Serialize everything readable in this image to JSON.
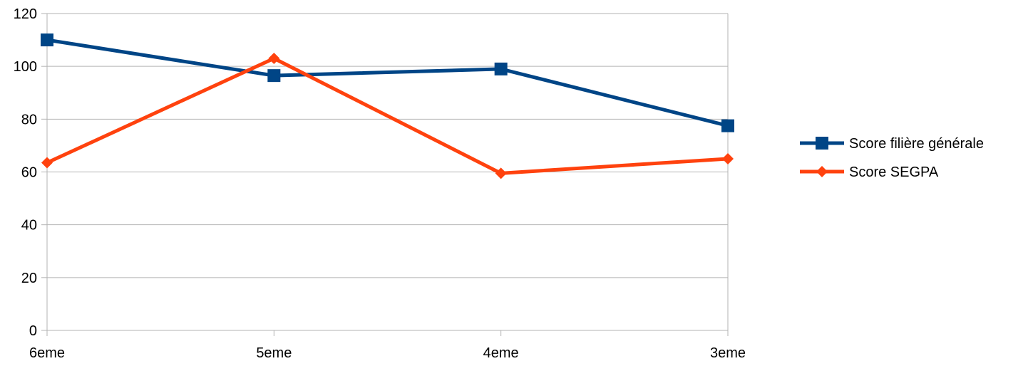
{
  "chart_data": {
    "type": "line",
    "categories": [
      "6eme",
      "5eme",
      "4eme",
      "3eme"
    ],
    "ylim": [
      0,
      120
    ],
    "yticks": [
      0,
      20,
      40,
      60,
      80,
      100,
      120
    ],
    "grid": true,
    "legend_position": "right",
    "series": [
      {
        "name": "Score filière générale",
        "values": [
          110,
          96.5,
          99,
          77.5
        ],
        "color": "#004586",
        "marker": "square"
      },
      {
        "name": "Score SEGPA",
        "values": [
          63.5,
          103,
          59.5,
          65
        ],
        "color": "#ff420e",
        "marker": "diamond"
      }
    ]
  }
}
